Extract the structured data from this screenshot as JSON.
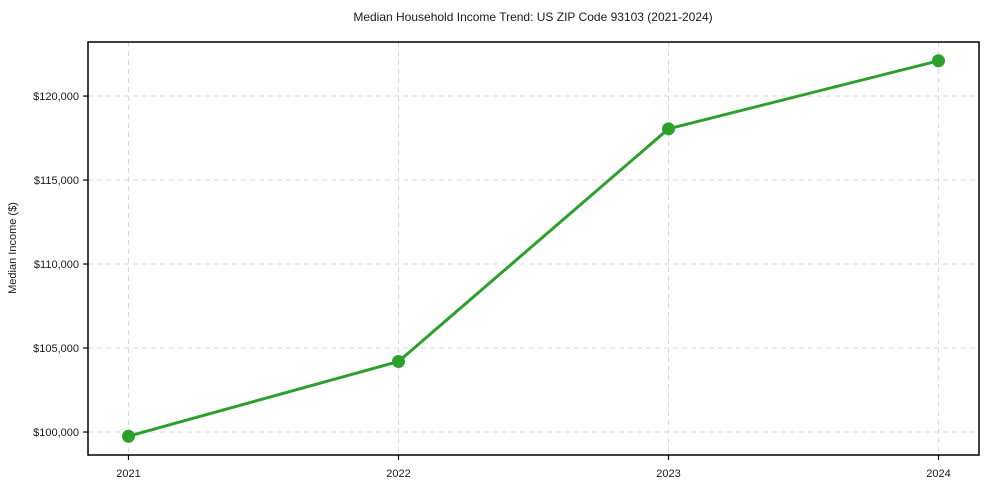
{
  "page": {
    "background_color": "#ffffff"
  },
  "chart_data": {
    "type": "line",
    "title": "Median Household Income Trend: US ZIP Code 93103 (2021-2024)",
    "xlabel": "",
    "ylabel": "Median Income ($)",
    "categories": [
      "2021",
      "2022",
      "2023",
      "2024"
    ],
    "series": [
      {
        "name": "Median Household Income",
        "values": [
          99750,
          104200,
          118050,
          122100
        ]
      }
    ],
    "ytick_values": [
      100000,
      105000,
      110000,
      115000,
      120000
    ],
    "ytick_labels": [
      "$100,000",
      "$105,000",
      "$110,000",
      "$115,000",
      "$120,000"
    ],
    "ylim": [
      98632,
      123218
    ],
    "x_margin": 0.15,
    "grid": true,
    "grid_style": "dashed",
    "legend": false,
    "line_color": "#2ca02c",
    "marker_color": "#2ca02c",
    "marker_radius": 6.5,
    "line_width": 3,
    "grid_color": "#d8d8d8",
    "axis_color": "#000000",
    "text_color": "#1a1a1a"
  }
}
